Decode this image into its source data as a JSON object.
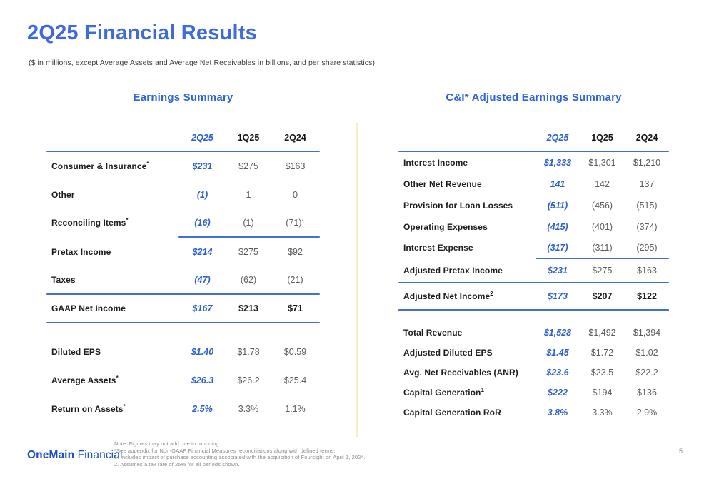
{
  "slide": {
    "title": "2Q25 Financial Results",
    "subtitle": "($ in millions, except Average Assets and Average Net Receivables in billions, and per share statistics)",
    "page_number": "5"
  },
  "colors": {
    "accent_blue": "#2b5fcc",
    "title_blue": "#3e6bdb",
    "rule_blue": "#4170d4",
    "value_gray": "#5a5b5e",
    "divider_cream": "#f5edc4",
    "logo_blue": "#1e4ec6"
  },
  "left_table": {
    "title": "Earnings Summary",
    "columns": [
      "2Q25",
      "1Q25",
      "2Q24"
    ],
    "rows": [
      {
        "label": "Consumer & Insurance",
        "sup": "*",
        "q225": "$231",
        "q125": "$275",
        "q224": "$163"
      },
      {
        "label": "Other",
        "q225": "(1)",
        "q125": "1",
        "q224": "0"
      },
      {
        "label": "Reconciling Items",
        "sup": "*",
        "q225": "(16)",
        "q125": "(1)",
        "q224": "(71)¹"
      },
      {
        "label": "Pretax Income",
        "q225": "$214",
        "q125": "$275",
        "q224": "$92"
      },
      {
        "label": "Taxes",
        "q225": "(47)",
        "q125": "(62)",
        "q224": "(21)"
      },
      {
        "label": "GAAP Net Income",
        "q225": "$167",
        "q125": "$213",
        "q224": "$71"
      },
      {
        "label": "Diluted EPS",
        "q225": "$1.40",
        "q125": "$1.78",
        "q224": "$0.59"
      },
      {
        "label": "Average Assets",
        "sup": "*",
        "q225": "$26.3",
        "q125": "$26.2",
        "q224": "$25.4"
      },
      {
        "label": "Return on Assets",
        "sup": "*",
        "q225": "2.5%",
        "q125": "3.3%",
        "q224": "1.1%"
      }
    ]
  },
  "right_table": {
    "title": "C&I* Adjusted Earnings Summary",
    "columns": [
      "2Q25",
      "1Q25",
      "2Q24"
    ],
    "rows": [
      {
        "label": "Interest Income",
        "q225": "$1,333",
        "q125": "$1,301",
        "q224": "$1,210"
      },
      {
        "label": "Other Net Revenue",
        "q225": "141",
        "q125": "142",
        "q224": "137"
      },
      {
        "label": "Provision for Loan Losses",
        "q225": "(511)",
        "q125": "(456)",
        "q224": "(515)"
      },
      {
        "label": "Operating Expenses",
        "q225": "(415)",
        "q125": "(401)",
        "q224": "(374)"
      },
      {
        "label": "Interest Expense",
        "q225": "(317)",
        "q125": "(311)",
        "q224": "(295)"
      },
      {
        "label": "Adjusted Pretax Income",
        "q225": "$231",
        "q125": "$275",
        "q224": "$163"
      },
      {
        "label": "Adjusted Net Income",
        "sup": "2",
        "q225": "$173",
        "q125": "$207",
        "q224": "$122"
      },
      {
        "label": "Total Revenue",
        "q225": "$1,528",
        "q125": "$1,492",
        "q224": "$1,394"
      },
      {
        "label": "Adjusted Diluted EPS",
        "q225": "$1.45",
        "q125": "$1.72",
        "q224": "$1.02"
      },
      {
        "label": "Avg. Net Receivables (ANR)",
        "q225": "$23.6",
        "q125": "$23.5",
        "q224": "$22.2"
      },
      {
        "label": "Capital Generation",
        "sup": "1",
        "q225": "$222",
        "q125": "$194",
        "q224": "$136"
      },
      {
        "label": "Capital Generation RoR",
        "q225": "3.8%",
        "q125": "3.3%",
        "q224": "2.9%"
      }
    ]
  },
  "footnotes": {
    "line1": "Note: Figures may not add due to rounding.",
    "line2": "*See appendix for Non-GAAP Financial Measures reconciliations along with defined terms.",
    "line3": "1. Includes impact of purchase accounting associated with the acquisition of Foursight on April 1, 2024.",
    "line4": "2. Assumes a tax rate of 25% for all periods shown."
  },
  "logo": {
    "part1": "OneMain",
    "part2": " Financial."
  }
}
